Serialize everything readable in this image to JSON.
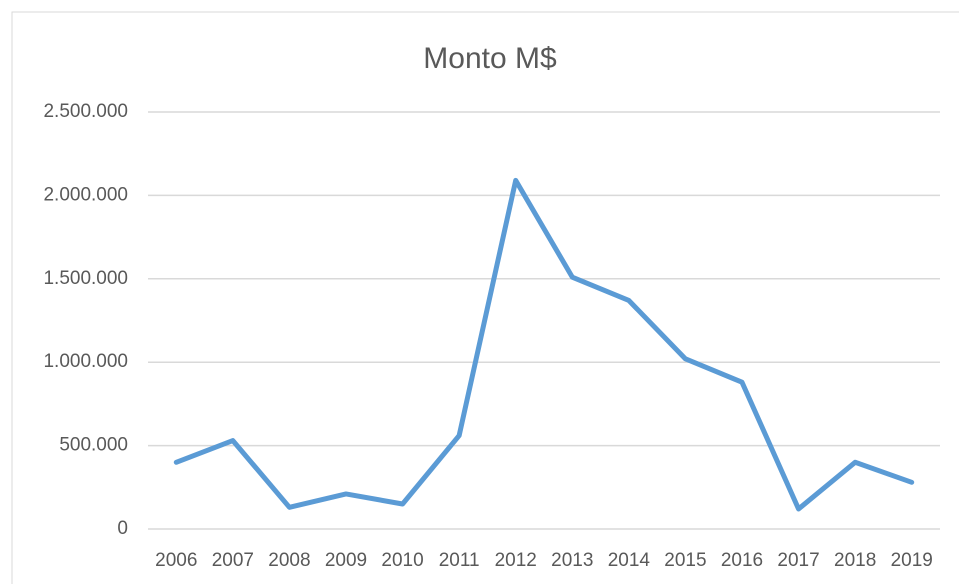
{
  "chart_data": {
    "type": "line",
    "title": "Monto M$",
    "categories": [
      "2006",
      "2007",
      "2008",
      "2009",
      "2010",
      "2011",
      "2012",
      "2013",
      "2014",
      "2015",
      "2016",
      "2017",
      "2018",
      "2019"
    ],
    "series": [
      {
        "name": "Monto M$",
        "color": "#5b9bd5",
        "values": [
          400000,
          530000,
          130000,
          210000,
          150000,
          560000,
          2090000,
          1510000,
          1370000,
          1020000,
          880000,
          120000,
          400000,
          280000
        ]
      }
    ],
    "ylim": [
      0,
      2500000
    ],
    "yticks": [
      0,
      {
        "value": 500000,
        "label": "500.000"
      },
      {
        "value": 1000000,
        "label": "1.000.000"
      },
      {
        "value": 1500000,
        "label": "1.500.000"
      },
      {
        "value": 2000000,
        "label": "2.000.000"
      },
      {
        "value": 2500000,
        "label": "2.500.000"
      }
    ],
    "grid": true
  }
}
